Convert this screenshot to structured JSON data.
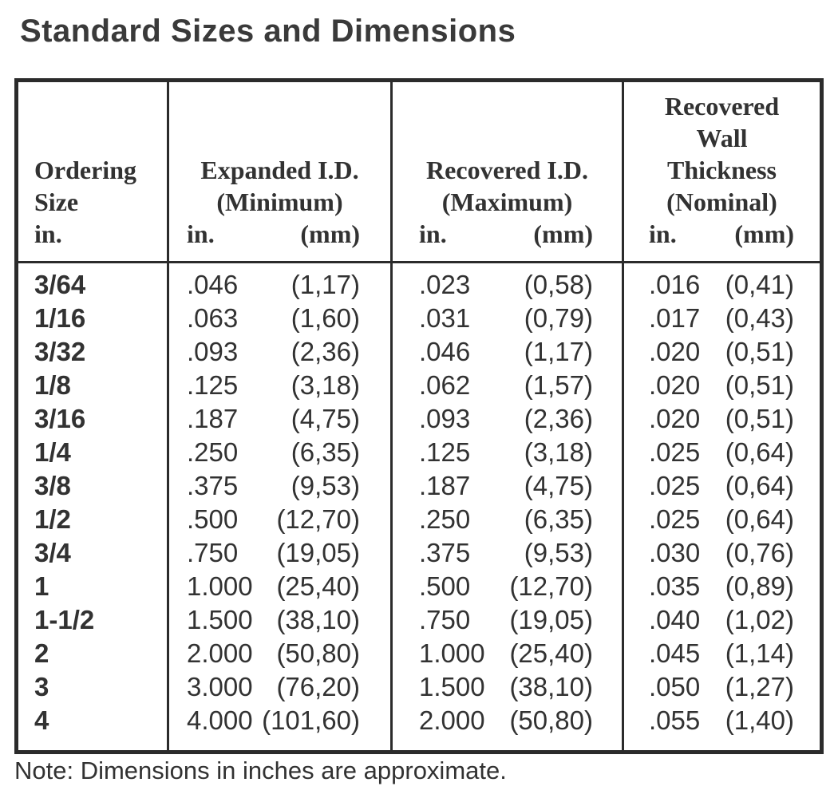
{
  "page": {
    "title": "Standard Sizes and Dimensions",
    "note": "Note: Dimensions in inches are approximate."
  },
  "colors": {
    "bg": "#ffffff",
    "text": "#323232",
    "title": "#3a3a3a",
    "border": "#2b2b2b"
  },
  "table": {
    "columns": [
      {
        "id": "ordering-size",
        "header_lines": [
          "Ordering",
          "Size"
        ],
        "unit_in": "in."
      },
      {
        "id": "expanded-id",
        "header_lines": [
          "Expanded I.D.",
          "(Minimum)"
        ],
        "unit_in": "in.",
        "unit_mm": "(mm)"
      },
      {
        "id": "recovered-id",
        "header_lines": [
          "Recovered I.D.",
          "(Maximum)"
        ],
        "unit_in": "in.",
        "unit_mm": "(mm)"
      },
      {
        "id": "recovered-wall",
        "header_lines": [
          "Recovered",
          "Wall",
          "Thickness",
          "(Nominal)"
        ],
        "unit_in": "in.",
        "unit_mm": "(mm)"
      }
    ],
    "rows": [
      {
        "size": "3/64",
        "expanded_in": ".046",
        "expanded_mm": "(1,17)",
        "recovered_in": ".023",
        "recovered_mm": "(0,58)",
        "wall_in": ".016",
        "wall_mm": "(0,41)"
      },
      {
        "size": "1/16",
        "expanded_in": ".063",
        "expanded_mm": "(1,60)",
        "recovered_in": ".031",
        "recovered_mm": "(0,79)",
        "wall_in": ".017",
        "wall_mm": "(0,43)"
      },
      {
        "size": "3/32",
        "expanded_in": ".093",
        "expanded_mm": "(2,36)",
        "recovered_in": ".046",
        "recovered_mm": "(1,17)",
        "wall_in": ".020",
        "wall_mm": "(0,51)"
      },
      {
        "size": "1/8",
        "expanded_in": ".125",
        "expanded_mm": "(3,18)",
        "recovered_in": ".062",
        "recovered_mm": "(1,57)",
        "wall_in": ".020",
        "wall_mm": "(0,51)"
      },
      {
        "size": "3/16",
        "expanded_in": ".187",
        "expanded_mm": "(4,75)",
        "recovered_in": ".093",
        "recovered_mm": "(2,36)",
        "wall_in": ".020",
        "wall_mm": "(0,51)"
      },
      {
        "size": "1/4",
        "expanded_in": ".250",
        "expanded_mm": "(6,35)",
        "recovered_in": ".125",
        "recovered_mm": "(3,18)",
        "wall_in": ".025",
        "wall_mm": "(0,64)"
      },
      {
        "size": "3/8",
        "expanded_in": ".375",
        "expanded_mm": "(9,53)",
        "recovered_in": ".187",
        "recovered_mm": "(4,75)",
        "wall_in": ".025",
        "wall_mm": "(0,64)"
      },
      {
        "size": "1/2",
        "expanded_in": ".500",
        "expanded_mm": "(12,70)",
        "recovered_in": ".250",
        "recovered_mm": "(6,35)",
        "wall_in": ".025",
        "wall_mm": "(0,64)"
      },
      {
        "size": "3/4",
        "expanded_in": ".750",
        "expanded_mm": "(19,05)",
        "recovered_in": ".375",
        "recovered_mm": "(9,53)",
        "wall_in": ".030",
        "wall_mm": "(0,76)"
      },
      {
        "size": "1",
        "expanded_in": "1.000",
        "expanded_mm": "(25,40)",
        "recovered_in": ".500",
        "recovered_mm": "(12,70)",
        "wall_in": ".035",
        "wall_mm": "(0,89)"
      },
      {
        "size": "1-1/2",
        "expanded_in": "1.500",
        "expanded_mm": "(38,10)",
        "recovered_in": ".750",
        "recovered_mm": "(19,05)",
        "wall_in": ".040",
        "wall_mm": "(1,02)"
      },
      {
        "size": "2",
        "expanded_in": "2.000",
        "expanded_mm": "(50,80)",
        "recovered_in": "1.000",
        "recovered_mm": "(25,40)",
        "wall_in": ".045",
        "wall_mm": "(1,14)"
      },
      {
        "size": "3",
        "expanded_in": "3.000",
        "expanded_mm": "(76,20)",
        "recovered_in": "1.500",
        "recovered_mm": "(38,10)",
        "wall_in": ".050",
        "wall_mm": "(1,27)"
      },
      {
        "size": "4",
        "expanded_in": "4.000",
        "expanded_mm": "(101,60)",
        "recovered_in": "2.000",
        "recovered_mm": "(50,80)",
        "wall_in": ".055",
        "wall_mm": "(1,40)"
      }
    ]
  }
}
